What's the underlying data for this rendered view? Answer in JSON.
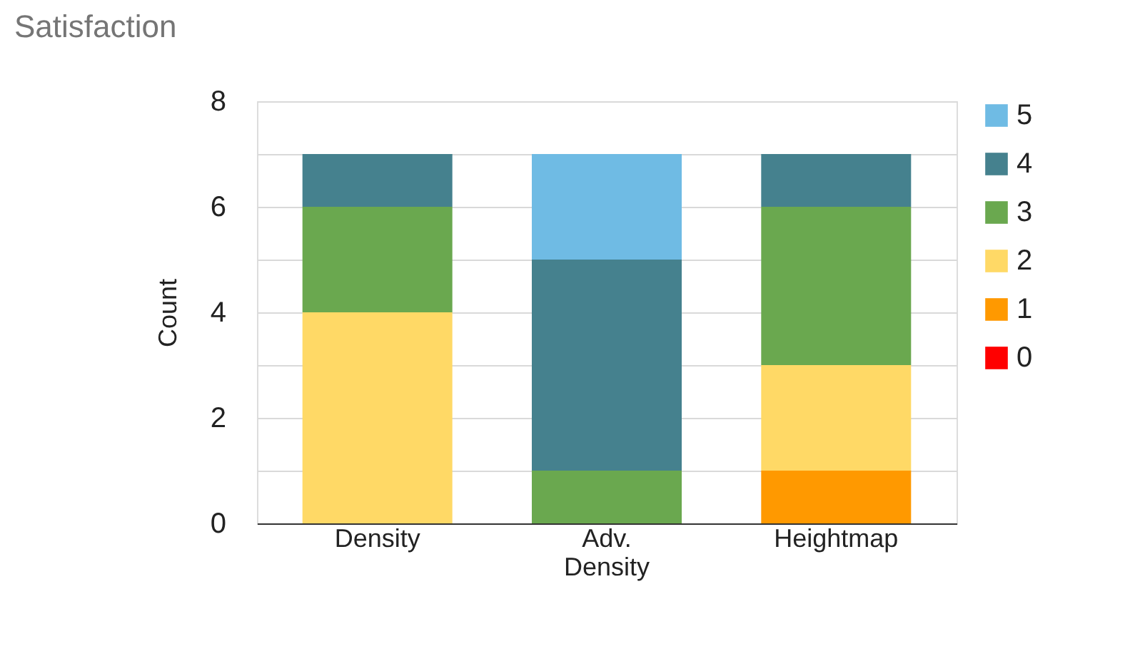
{
  "chart_data": {
    "type": "bar",
    "stacked": true,
    "title": "Satisfaction",
    "ylabel": "Count",
    "categories": [
      "Density",
      "Adv. Density",
      "Heightmap"
    ],
    "series": [
      {
        "name": "0",
        "color": "#ff0000",
        "values": [
          0,
          0,
          0
        ]
      },
      {
        "name": "1",
        "color": "#ff9900",
        "values": [
          0,
          0,
          1
        ]
      },
      {
        "name": "2",
        "color": "#ffd966",
        "values": [
          4,
          0,
          2
        ]
      },
      {
        "name": "3",
        "color": "#6aa84f",
        "values": [
          2,
          1,
          3
        ]
      },
      {
        "name": "4",
        "color": "#45818e",
        "values": [
          1,
          4,
          1
        ]
      },
      {
        "name": "5",
        "color": "#6fbbe4",
        "values": [
          0,
          2,
          0
        ]
      }
    ],
    "ylim": [
      0,
      8
    ],
    "yticks": [
      0,
      {
        "value": 1,
        "label": null
      },
      2,
      {
        "value": 3,
        "label": null
      },
      4,
      {
        "value": 5,
        "label": null
      },
      6,
      {
        "value": 7,
        "label": null
      },
      8
    ],
    "grid": "y",
    "legend": "right"
  }
}
